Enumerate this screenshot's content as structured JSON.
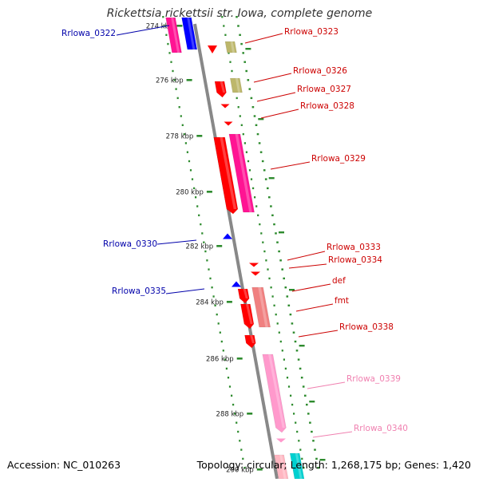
{
  "title": "Rickettsia rickettsii str. Iowa, complete genome",
  "accession": "Accession: NC_010263",
  "summary": "Topology: circular; Length: 1,268,175 bp; Genes: 1,420",
  "scale_labels": [
    "274 kbp",
    "276 kbp",
    "278 kbp",
    "280 kbp",
    "282 kbp",
    "284 kbp",
    "286 kbp",
    "288 kbp",
    "290 kbp"
  ],
  "colors": {
    "backbone": "#888888",
    "dots": "#2e8b2e",
    "forward_label": "#cc0000",
    "reverse_label": "#0000aa",
    "pink_label": "#f080b0"
  },
  "genes": [
    {
      "label": "Rrlowa_0322",
      "color": "#0000aa",
      "strand": "reverse"
    },
    {
      "label": "Rrlowa_0323",
      "color": "#cc0000",
      "strand": "forward"
    },
    {
      "label": "Rrlowa_0326",
      "color": "#cc0000",
      "strand": "forward"
    },
    {
      "label": "Rrlowa_0327",
      "color": "#cc0000",
      "strand": "forward"
    },
    {
      "label": "Rrlowa_0328",
      "color": "#cc0000",
      "strand": "forward"
    },
    {
      "label": "Rrlowa_0329",
      "color": "#cc0000",
      "strand": "forward"
    },
    {
      "label": "Rrlowa_0330",
      "color": "#0000aa",
      "strand": "reverse"
    },
    {
      "label": "Rrlowa_0333",
      "color": "#cc0000",
      "strand": "forward"
    },
    {
      "label": "Rrlowa_0334",
      "color": "#cc0000",
      "strand": "forward"
    },
    {
      "label": "Rrlowa_0335",
      "color": "#0000aa",
      "strand": "reverse"
    },
    {
      "label": "def",
      "color": "#cc0000",
      "strand": "forward"
    },
    {
      "label": "fmt",
      "color": "#cc0000",
      "strand": "forward"
    },
    {
      "label": "Rrlowa_0338",
      "color": "#cc0000",
      "strand": "forward"
    },
    {
      "label": "Rrlowa_0339",
      "color": "#f080b0",
      "strand": "forward"
    },
    {
      "label": "Rrlowa_0340",
      "color": "#f080b0",
      "strand": "forward"
    }
  ]
}
